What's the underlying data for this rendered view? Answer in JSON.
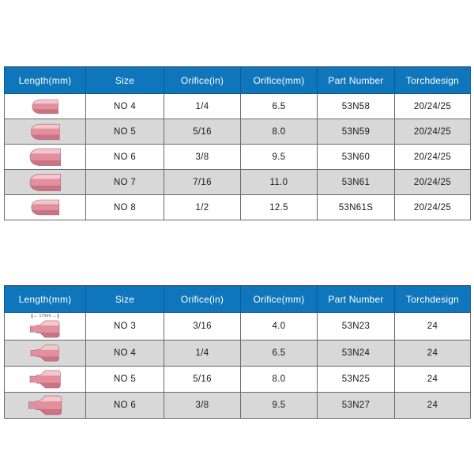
{
  "colors": {
    "header_bg": "#0f76bb",
    "header_text": "#ffffff",
    "header_border": "#0a5c94",
    "row_bg": "#ffffff",
    "row_alt_bg": "#d8d8d8",
    "border_inner": "#6a6a6a",
    "border_outer": "#454545",
    "body_text": "#1a1a1a",
    "nozzle_main": "#e2909e",
    "nozzle_light": "#f4c6cd",
    "nozzle_dark": "#c97484",
    "nozzle_outline": "#b06b79"
  },
  "tables": [
    {
      "name": "upper-product-table",
      "nozzle_style": "dome-cup",
      "columns": [
        "Length(mm)",
        "Size",
        "Orifice(in)",
        "Orifice(mm)",
        "Part Number",
        "Torchdesign"
      ],
      "rows": [
        {
          "size": "NO 4",
          "orifice_in": "1/4",
          "orifice_mm": "6.5",
          "part": "53N58",
          "torch": "20/24/25"
        },
        {
          "size": "NO 5",
          "orifice_in": "5/16",
          "orifice_mm": "8.0",
          "part": "53N59",
          "torch": "20/24/25"
        },
        {
          "size": "NO 6",
          "orifice_in": "3/8",
          "orifice_mm": "9.5",
          "part": "53N60",
          "torch": "20/24/25"
        },
        {
          "size": "NO 7",
          "orifice_in": "7/16",
          "orifice_mm": "11.0",
          "part": "53N61",
          "torch": "20/24/25"
        },
        {
          "size": "NO 8",
          "orifice_in": "1/2",
          "orifice_mm": "12.5",
          "part": "53N61S",
          "torch": "20/24/25"
        }
      ]
    },
    {
      "name": "lower-product-table",
      "nozzle_style": "gas-lens-cup",
      "columns": [
        "Length(mm)",
        "Size",
        "Orifice(in)",
        "Orifice(mm)",
        "Part Number",
        "Torchdesign"
      ],
      "rows": [
        {
          "size": "NO 3",
          "orifice_in": "3/16",
          "orifice_mm": "4.0",
          "part": "53N23",
          "torch": "24",
          "annotation": "17mm"
        },
        {
          "size": "NO 4",
          "orifice_in": "1/4",
          "orifice_mm": "6.5",
          "part": "53N24",
          "torch": "24"
        },
        {
          "size": "NO 5",
          "orifice_in": "5/16",
          "orifice_mm": "8.0",
          "part": "53N25",
          "torch": "24"
        },
        {
          "size": "NO 6",
          "orifice_in": "3/8",
          "orifice_mm": "9.5",
          "part": "53N27",
          "torch": "24"
        }
      ]
    }
  ]
}
